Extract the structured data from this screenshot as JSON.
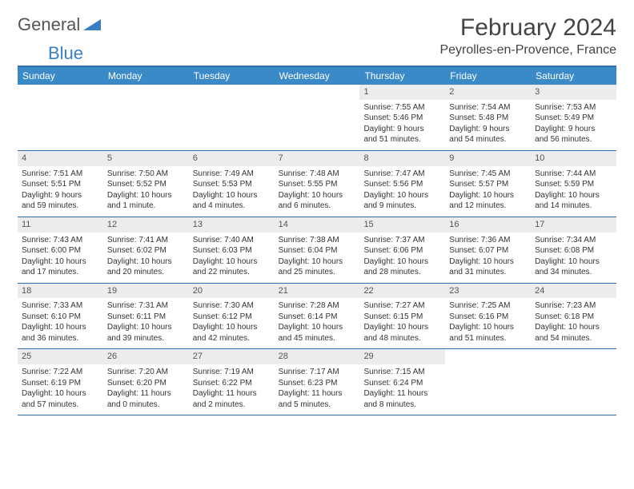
{
  "logo": {
    "text1": "General",
    "text2": "Blue"
  },
  "title": "February 2024",
  "location": "Peyrolles-en-Provence, France",
  "colors": {
    "header_bg": "#3a8ac8",
    "border": "#2f6faf",
    "daynum_bg": "#ececec",
    "logo_gray": "#555555",
    "logo_blue": "#3a7fc4"
  },
  "weekdays": [
    "Sunday",
    "Monday",
    "Tuesday",
    "Wednesday",
    "Thursday",
    "Friday",
    "Saturday"
  ],
  "weeks": [
    [
      {
        "n": "",
        "sr": "",
        "ss": "",
        "dl1": "",
        "dl2": ""
      },
      {
        "n": "",
        "sr": "",
        "ss": "",
        "dl1": "",
        "dl2": ""
      },
      {
        "n": "",
        "sr": "",
        "ss": "",
        "dl1": "",
        "dl2": ""
      },
      {
        "n": "",
        "sr": "",
        "ss": "",
        "dl1": "",
        "dl2": ""
      },
      {
        "n": "1",
        "sr": "Sunrise: 7:55 AM",
        "ss": "Sunset: 5:46 PM",
        "dl1": "Daylight: 9 hours",
        "dl2": "and 51 minutes."
      },
      {
        "n": "2",
        "sr": "Sunrise: 7:54 AM",
        "ss": "Sunset: 5:48 PM",
        "dl1": "Daylight: 9 hours",
        "dl2": "and 54 minutes."
      },
      {
        "n": "3",
        "sr": "Sunrise: 7:53 AM",
        "ss": "Sunset: 5:49 PM",
        "dl1": "Daylight: 9 hours",
        "dl2": "and 56 minutes."
      }
    ],
    [
      {
        "n": "4",
        "sr": "Sunrise: 7:51 AM",
        "ss": "Sunset: 5:51 PM",
        "dl1": "Daylight: 9 hours",
        "dl2": "and 59 minutes."
      },
      {
        "n": "5",
        "sr": "Sunrise: 7:50 AM",
        "ss": "Sunset: 5:52 PM",
        "dl1": "Daylight: 10 hours",
        "dl2": "and 1 minute."
      },
      {
        "n": "6",
        "sr": "Sunrise: 7:49 AM",
        "ss": "Sunset: 5:53 PM",
        "dl1": "Daylight: 10 hours",
        "dl2": "and 4 minutes."
      },
      {
        "n": "7",
        "sr": "Sunrise: 7:48 AM",
        "ss": "Sunset: 5:55 PM",
        "dl1": "Daylight: 10 hours",
        "dl2": "and 6 minutes."
      },
      {
        "n": "8",
        "sr": "Sunrise: 7:47 AM",
        "ss": "Sunset: 5:56 PM",
        "dl1": "Daylight: 10 hours",
        "dl2": "and 9 minutes."
      },
      {
        "n": "9",
        "sr": "Sunrise: 7:45 AM",
        "ss": "Sunset: 5:57 PM",
        "dl1": "Daylight: 10 hours",
        "dl2": "and 12 minutes."
      },
      {
        "n": "10",
        "sr": "Sunrise: 7:44 AM",
        "ss": "Sunset: 5:59 PM",
        "dl1": "Daylight: 10 hours",
        "dl2": "and 14 minutes."
      }
    ],
    [
      {
        "n": "11",
        "sr": "Sunrise: 7:43 AM",
        "ss": "Sunset: 6:00 PM",
        "dl1": "Daylight: 10 hours",
        "dl2": "and 17 minutes."
      },
      {
        "n": "12",
        "sr": "Sunrise: 7:41 AM",
        "ss": "Sunset: 6:02 PM",
        "dl1": "Daylight: 10 hours",
        "dl2": "and 20 minutes."
      },
      {
        "n": "13",
        "sr": "Sunrise: 7:40 AM",
        "ss": "Sunset: 6:03 PM",
        "dl1": "Daylight: 10 hours",
        "dl2": "and 22 minutes."
      },
      {
        "n": "14",
        "sr": "Sunrise: 7:38 AM",
        "ss": "Sunset: 6:04 PM",
        "dl1": "Daylight: 10 hours",
        "dl2": "and 25 minutes."
      },
      {
        "n": "15",
        "sr": "Sunrise: 7:37 AM",
        "ss": "Sunset: 6:06 PM",
        "dl1": "Daylight: 10 hours",
        "dl2": "and 28 minutes."
      },
      {
        "n": "16",
        "sr": "Sunrise: 7:36 AM",
        "ss": "Sunset: 6:07 PM",
        "dl1": "Daylight: 10 hours",
        "dl2": "and 31 minutes."
      },
      {
        "n": "17",
        "sr": "Sunrise: 7:34 AM",
        "ss": "Sunset: 6:08 PM",
        "dl1": "Daylight: 10 hours",
        "dl2": "and 34 minutes."
      }
    ],
    [
      {
        "n": "18",
        "sr": "Sunrise: 7:33 AM",
        "ss": "Sunset: 6:10 PM",
        "dl1": "Daylight: 10 hours",
        "dl2": "and 36 minutes."
      },
      {
        "n": "19",
        "sr": "Sunrise: 7:31 AM",
        "ss": "Sunset: 6:11 PM",
        "dl1": "Daylight: 10 hours",
        "dl2": "and 39 minutes."
      },
      {
        "n": "20",
        "sr": "Sunrise: 7:30 AM",
        "ss": "Sunset: 6:12 PM",
        "dl1": "Daylight: 10 hours",
        "dl2": "and 42 minutes."
      },
      {
        "n": "21",
        "sr": "Sunrise: 7:28 AM",
        "ss": "Sunset: 6:14 PM",
        "dl1": "Daylight: 10 hours",
        "dl2": "and 45 minutes."
      },
      {
        "n": "22",
        "sr": "Sunrise: 7:27 AM",
        "ss": "Sunset: 6:15 PM",
        "dl1": "Daylight: 10 hours",
        "dl2": "and 48 minutes."
      },
      {
        "n": "23",
        "sr": "Sunrise: 7:25 AM",
        "ss": "Sunset: 6:16 PM",
        "dl1": "Daylight: 10 hours",
        "dl2": "and 51 minutes."
      },
      {
        "n": "24",
        "sr": "Sunrise: 7:23 AM",
        "ss": "Sunset: 6:18 PM",
        "dl1": "Daylight: 10 hours",
        "dl2": "and 54 minutes."
      }
    ],
    [
      {
        "n": "25",
        "sr": "Sunrise: 7:22 AM",
        "ss": "Sunset: 6:19 PM",
        "dl1": "Daylight: 10 hours",
        "dl2": "and 57 minutes."
      },
      {
        "n": "26",
        "sr": "Sunrise: 7:20 AM",
        "ss": "Sunset: 6:20 PM",
        "dl1": "Daylight: 11 hours",
        "dl2": "and 0 minutes."
      },
      {
        "n": "27",
        "sr": "Sunrise: 7:19 AM",
        "ss": "Sunset: 6:22 PM",
        "dl1": "Daylight: 11 hours",
        "dl2": "and 2 minutes."
      },
      {
        "n": "28",
        "sr": "Sunrise: 7:17 AM",
        "ss": "Sunset: 6:23 PM",
        "dl1": "Daylight: 11 hours",
        "dl2": "and 5 minutes."
      },
      {
        "n": "29",
        "sr": "Sunrise: 7:15 AM",
        "ss": "Sunset: 6:24 PM",
        "dl1": "Daylight: 11 hours",
        "dl2": "and 8 minutes."
      },
      {
        "n": "",
        "sr": "",
        "ss": "",
        "dl1": "",
        "dl2": ""
      },
      {
        "n": "",
        "sr": "",
        "ss": "",
        "dl1": "",
        "dl2": ""
      }
    ]
  ]
}
